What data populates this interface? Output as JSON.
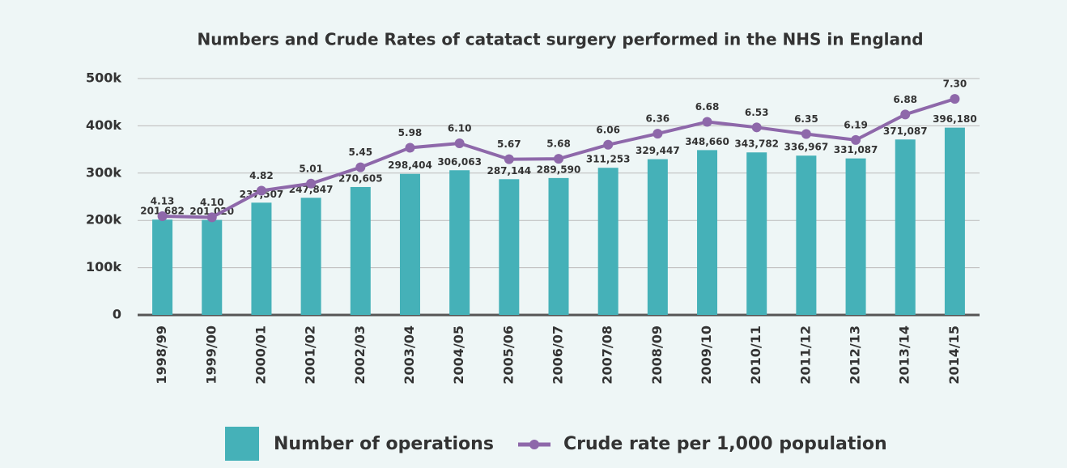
{
  "chart_data": {
    "type": "bar",
    "title": "Numbers and Crude Rates of catatact surgery performed in the NHS in England",
    "categories": [
      "1998/99",
      "1999/00",
      "2000/01",
      "2001/02",
      "2002/03",
      "2003/04",
      "2004/05",
      "2005/06",
      "2006/07",
      "2007/08",
      "2008/09",
      "2009/10",
      "2010/11",
      "2011/12",
      "2012/13",
      "2013/14",
      "2014/15"
    ],
    "series": [
      {
        "name": "Number of operations",
        "type": "bar",
        "color": "#45b1b8",
        "values": [
          201682,
          201020,
          237507,
          247847,
          270605,
          298404,
          306063,
          287144,
          289590,
          311253,
          329447,
          348660,
          343782,
          336967,
          331087,
          371087,
          396180
        ],
        "value_labels": [
          "201,682",
          "201,020",
          "237,507",
          "247,847",
          "270,605",
          "298,404",
          "306,063",
          "287,144",
          "289,590",
          "311,253",
          "329,447",
          "348,660",
          "343,782",
          "336,967",
          "331,087",
          "371,087",
          "396,180"
        ]
      },
      {
        "name": "Crude rate per 1,000 population",
        "type": "line",
        "axis": "y2",
        "color": "#8e68aa",
        "values": [
          4.13,
          4.1,
          4.82,
          5.01,
          5.45,
          5.98,
          6.1,
          5.67,
          5.68,
          6.06,
          6.36,
          6.68,
          6.53,
          6.35,
          6.19,
          6.88,
          7.3
        ],
        "value_labels": [
          "4.13",
          "4.10",
          "4.82",
          "5.01",
          "5.45",
          "5.98",
          "6.10",
          "5.67",
          "5.68",
          "6.06",
          "6.36",
          "6.68",
          "6.53",
          "6.35",
          "6.19",
          "6.88",
          "7.30"
        ]
      }
    ],
    "ylim": [
      0,
      500000
    ],
    "yticks": [
      0,
      {
        "value": 100000,
        "label": "100k"
      },
      {
        "value": 200000,
        "label": "200k"
      },
      {
        "value": 300000,
        "label": "300k"
      },
      {
        "value": 400000,
        "label": "400k"
      },
      {
        "value": 500000,
        "label": "500k"
      }
    ],
    "y2lim": [
      1.46,
      7.85
    ],
    "grid": true,
    "legend": "bottom"
  }
}
